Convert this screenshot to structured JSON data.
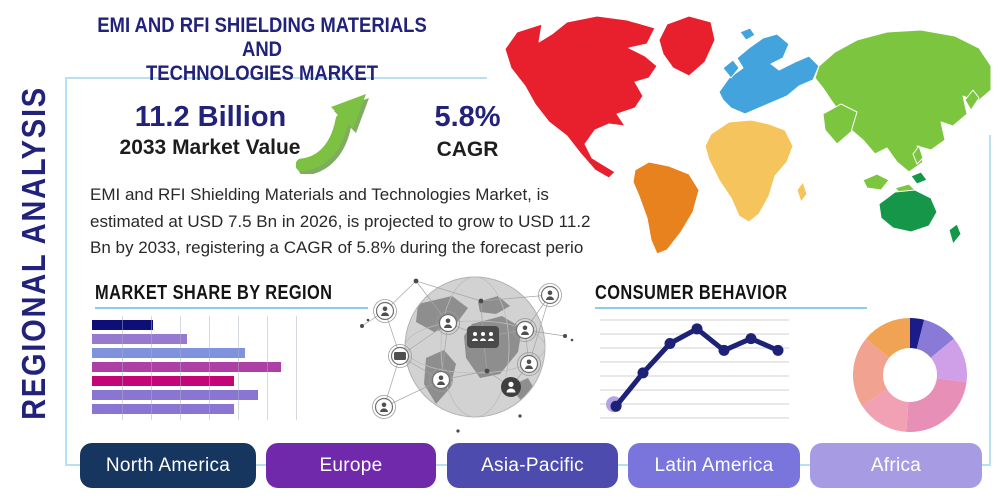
{
  "header": {
    "title_line1": "EMI AND RFI SHIELDING MATERIALS AND",
    "title_line2": "TECHNOLOGIES MARKET",
    "side_label": "REGIONAL ANALYSIS"
  },
  "stats": {
    "market_value": "11.2 Billion",
    "market_value_label": "2033 Market Value",
    "cagr_value": "5.8%",
    "cagr_label": "CAGR",
    "arrow_icon_color": "#7cc142"
  },
  "description": "EMI and RFI Shielding Materials and Technologies Market, is estimated at USD 7.5 Bn in 2026, is projected to grow to USD 11.2 Bn by 2033, registering a CAGR of 5.8% during the forecast perio",
  "chart_data": [
    {
      "id": "market-share-by-region",
      "type": "bar",
      "title": "MARKET SHARE BY REGION",
      "orientation": "horizontal",
      "values": [
        32,
        50,
        81,
        100,
        75,
        88,
        75
      ],
      "unit": "relative length, axis unlabeled",
      "xlim": [
        0,
        100
      ],
      "grid": "vertical",
      "colors": [
        "#0e0e78",
        "#9779cf",
        "#7e92dd",
        "#ad3fa5",
        "#c40575",
        "#8a76d2",
        "#8a76d2"
      ]
    },
    {
      "id": "consumer-behavior",
      "type": "line",
      "title": "CONSUMER BEHAVIOR",
      "x": [
        1,
        2,
        3,
        4,
        5,
        6,
        7
      ],
      "values": [
        12,
        46,
        76,
        91,
        69,
        81,
        69
      ],
      "unit": "relative height, axis unlabeled",
      "ylim": [
        0,
        100
      ],
      "grid": "horizontal",
      "color": "#1e2277",
      "first_point_halo_color": "#b4a3e8"
    },
    {
      "id": "regional-donut",
      "type": "pie",
      "donut": true,
      "values": [
        4,
        10,
        13,
        24,
        15,
        20,
        14
      ],
      "unit": "estimated percent, unlabeled",
      "colors": [
        "#1b1b8a",
        "#8a7ad8",
        "#cf9fe8",
        "#e88fb8",
        "#f2a0b4",
        "#f2a291",
        "#efa353"
      ]
    }
  ],
  "world_map": {
    "north_america": "#e8202e",
    "south_america": "#e8821e",
    "europe": "#42a3dd",
    "africa": "#f5c45c",
    "asia": "#7cc53f",
    "oceania": "#169649"
  },
  "regions": {
    "buttons": [
      {
        "label": "North America",
        "color": "#16365f"
      },
      {
        "label": "Europe",
        "color": "#7129ac"
      },
      {
        "label": "Asia-Pacific",
        "color": "#4d4bad"
      },
      {
        "label": "Latin America",
        "color": "#7a74dd"
      },
      {
        "label": "Africa",
        "color": "#a79ce4"
      }
    ]
  },
  "accents": {
    "panel_border": "#b9e0f2",
    "heading_underline": "#8ecde8",
    "navy": "#22227b"
  }
}
